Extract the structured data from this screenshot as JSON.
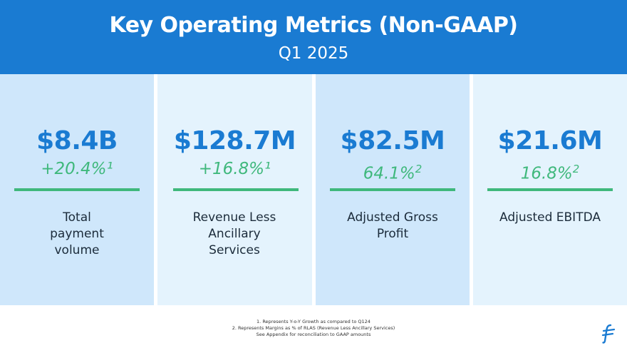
{
  "header": {
    "title": "Key Operating Metrics (Non-GAAP)",
    "subtitle": "Q1 2025"
  },
  "colors": {
    "header_bg": "#1a7bd2",
    "value_blue": "#1a7bd2",
    "accent_green": "#3fb87c",
    "panel_dark": "#cfe7fb",
    "panel_light": "#e4f3fd"
  },
  "metrics": [
    {
      "value": "$8.4B",
      "change": "+20.4%",
      "mark": "¹",
      "label": "Total payment volume"
    },
    {
      "value": "$128.7M",
      "change": "+16.8%",
      "mark": "¹",
      "label": "Revenue Less Ancillary Services"
    },
    {
      "value": "$82.5M",
      "change": "64.1%",
      "mark": "2",
      "label": "Adjusted Gross Profit"
    },
    {
      "value": "$21.6M",
      "change": "16.8%",
      "mark": "2",
      "label": "Adjusted EBITDA"
    }
  ],
  "footnotes": [
    "1. Represents Y-o-Y Growth as compared to Q124",
    "2. Represents Margins as % of RLAS (Revenue Less Ancillary Services)",
    "See Appendix for reconciliation to GAAP amounts"
  ],
  "logo": {
    "icon": "flywire-logo-icon"
  }
}
